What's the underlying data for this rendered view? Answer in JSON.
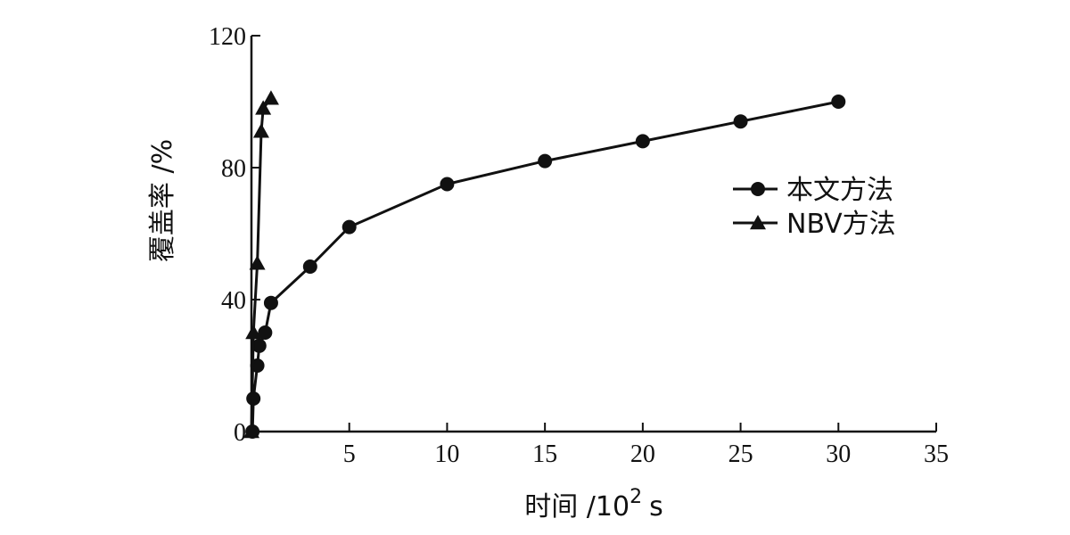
{
  "chart_data": {
    "type": "line",
    "xlabel": "时间 /10",
    "xlabel_superscript": "2",
    "xlabel_unit": "s",
    "ylabel": "覆盖率 /%",
    "xlim": [
      0,
      35
    ],
    "ylim": [
      0,
      120
    ],
    "x_ticks": [
      5,
      10,
      15,
      20,
      25,
      30,
      35
    ],
    "y_ticks": [
      0,
      40,
      80,
      120
    ],
    "x_tick_labels": [
      "5",
      "10",
      "15",
      "20",
      "25",
      "30",
      "35"
    ],
    "y_tick_labels": [
      "0",
      "40",
      "80",
      "120"
    ],
    "grid": false,
    "legend_position": "right",
    "series": [
      {
        "name": "本文方法",
        "marker": "circle",
        "points": [
          [
            0.05,
            0
          ],
          [
            0.1,
            10
          ],
          [
            0.3,
            20
          ],
          [
            0.4,
            26
          ],
          [
            0.7,
            30
          ],
          [
            1.0,
            39
          ],
          [
            3.0,
            50
          ],
          [
            5.0,
            62
          ],
          [
            10.0,
            75
          ],
          [
            15.0,
            82
          ],
          [
            20.0,
            88
          ],
          [
            25.0,
            94
          ],
          [
            30.0,
            100
          ]
        ]
      },
      {
        "name": "NBV方法",
        "marker": "triangle",
        "points": [
          [
            0.0,
            0
          ],
          [
            0.1,
            30
          ],
          [
            0.3,
            51
          ],
          [
            0.5,
            91
          ],
          [
            0.6,
            98
          ],
          [
            1.0,
            101
          ]
        ]
      }
    ]
  }
}
